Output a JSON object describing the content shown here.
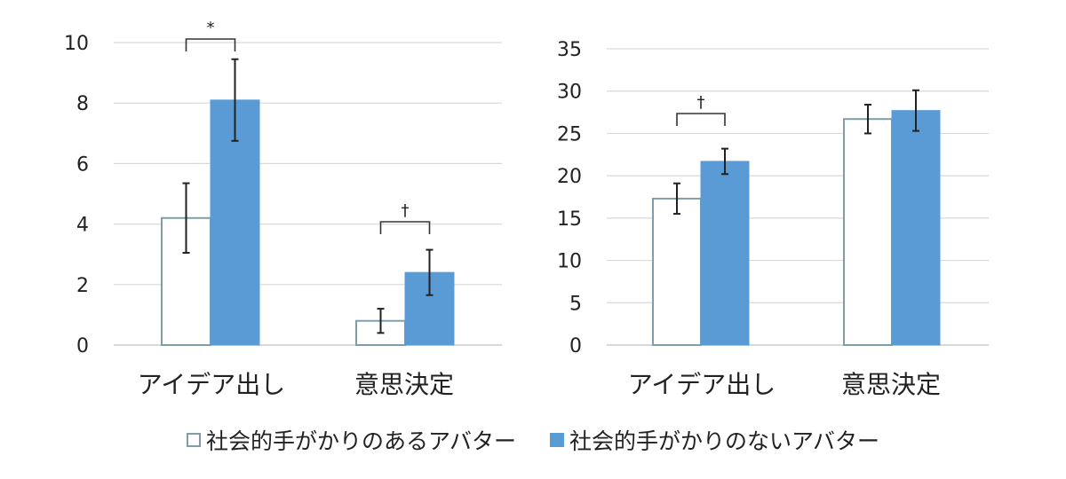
{
  "colors": {
    "series_a_edge": "#7f9fa8",
    "series_a_fill": "#ffffff",
    "series_b": "#5b9bd5",
    "grid": "#d9d9d9",
    "ink": "#222222"
  },
  "legend": [
    {
      "label": "社会的手がかりのあるアバター",
      "swatch": "outlined-square"
    },
    {
      "label": "社会的手がかりのないアバター",
      "swatch": "filled-square"
    }
  ],
  "chart_data": [
    {
      "type": "bar",
      "categories": [
        "アイデア出し",
        "意思決定"
      ],
      "ylim": [
        0,
        10
      ],
      "yticks": [
        0,
        2,
        4,
        6,
        8,
        10
      ],
      "grid": true,
      "series": [
        {
          "values": [
            4.2,
            0.8
          ],
          "errors": [
            1.15,
            0.4
          ]
        },
        {
          "values": [
            8.1,
            2.4
          ],
          "errors": [
            1.35,
            0.75
          ]
        }
      ],
      "annotations": [
        {
          "category": "アイデア出し",
          "text": "*"
        },
        {
          "category": "意思決定",
          "text": "†"
        }
      ]
    },
    {
      "type": "bar",
      "categories": [
        "アイデア出し",
        "意思決定"
      ],
      "ylim": [
        0,
        35
      ],
      "yticks": [
        0,
        5,
        10,
        15,
        20,
        25,
        30,
        35
      ],
      "grid": true,
      "series": [
        {
          "values": [
            17.3,
            26.7
          ],
          "errors": [
            1.8,
            1.7
          ]
        },
        {
          "values": [
            21.7,
            27.7
          ],
          "errors": [
            1.5,
            2.4
          ]
        }
      ],
      "annotations": [
        {
          "category": "アイデア出し",
          "text": "†"
        }
      ]
    }
  ]
}
